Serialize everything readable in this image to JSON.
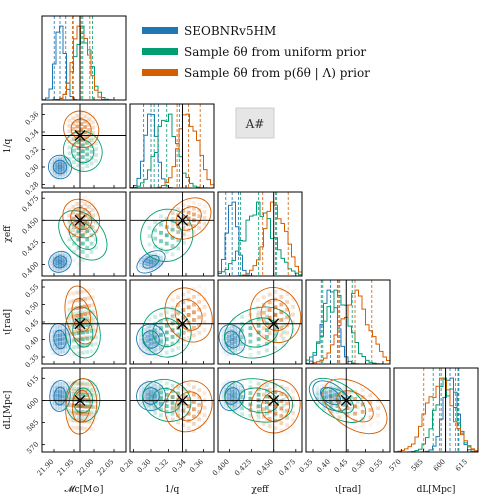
{
  "chart_data": {
    "type": "corner",
    "parameters": [
      {
        "key": "mc",
        "label": "𝓜c[M⊙]",
        "range": [
          21.87,
          22.08
        ],
        "ticks": [
          "21.90",
          "21.95",
          "22.00",
          "22.05"
        ],
        "tick_values": [
          21.9,
          21.95,
          22.0,
          22.05
        ],
        "truth": 21.965
      },
      {
        "key": "q",
        "label": "1/q",
        "range": [
          0.276,
          0.372
        ],
        "ticks": [
          "0.28",
          "0.30",
          "0.32",
          "0.34",
          "0.36"
        ],
        "tick_values": [
          0.28,
          0.3,
          0.32,
          0.34,
          0.36
        ],
        "truth": 0.336
      },
      {
        "key": "chi",
        "label": "χeff",
        "range": [
          0.387,
          0.482
        ],
        "ticks": [
          "0.400",
          "0.425",
          "0.450",
          "0.475"
        ],
        "tick_values": [
          0.4,
          0.425,
          0.45,
          0.475
        ],
        "truth": 0.45
      },
      {
        "key": "iota",
        "label": "ι[rad]",
        "range": [
          0.33,
          0.57
        ],
        "ticks": [
          "0.35",
          "0.40",
          "0.45",
          "0.50",
          "0.55"
        ],
        "tick_values": [
          0.35,
          0.4,
          0.45,
          0.5,
          0.55
        ],
        "truth": 0.445
      },
      {
        "key": "dl",
        "label": "dL[Mpc]",
        "range": [
          565,
          622
        ],
        "ticks": [
          "570",
          "585",
          "600",
          "615"
        ],
        "tick_values": [
          570,
          585,
          600,
          615
        ],
        "truth": 600
      }
    ],
    "series": [
      {
        "name": "SEOBNRv5HM",
        "color": "#1f77b4",
        "mean": {
          "mc": 21.915,
          "q": 0.3,
          "chi": 0.403,
          "iota": 0.4,
          "dl": 603
        },
        "sd": {
          "mc": 0.012,
          "q": 0.007,
          "chi": 0.006,
          "iota": 0.022,
          "dl": 5
        }
      },
      {
        "name": "Sample δθ from uniform prior",
        "color": "#009e73",
        "mean": {
          "mc": 21.972,
          "q": 0.318,
          "chi": 0.433,
          "iota": 0.42,
          "dl": 600
        },
        "sd": {
          "mc": 0.02,
          "q": 0.012,
          "chi": 0.017,
          "iota": 0.035,
          "dl": 7
        }
      },
      {
        "name": "Sample δθ from p(δθ | Λ) prior",
        "color": "#d55e00",
        "mean": {
          "mc": 21.968,
          "q": 0.343,
          "chi": 0.452,
          "iota": 0.47,
          "dl": 596
        },
        "sd": {
          "mc": 0.018,
          "q": 0.011,
          "chi": 0.012,
          "iota": 0.04,
          "dl": 9
        }
      }
    ],
    "badge": "A#",
    "legend_placement": "top-right"
  }
}
